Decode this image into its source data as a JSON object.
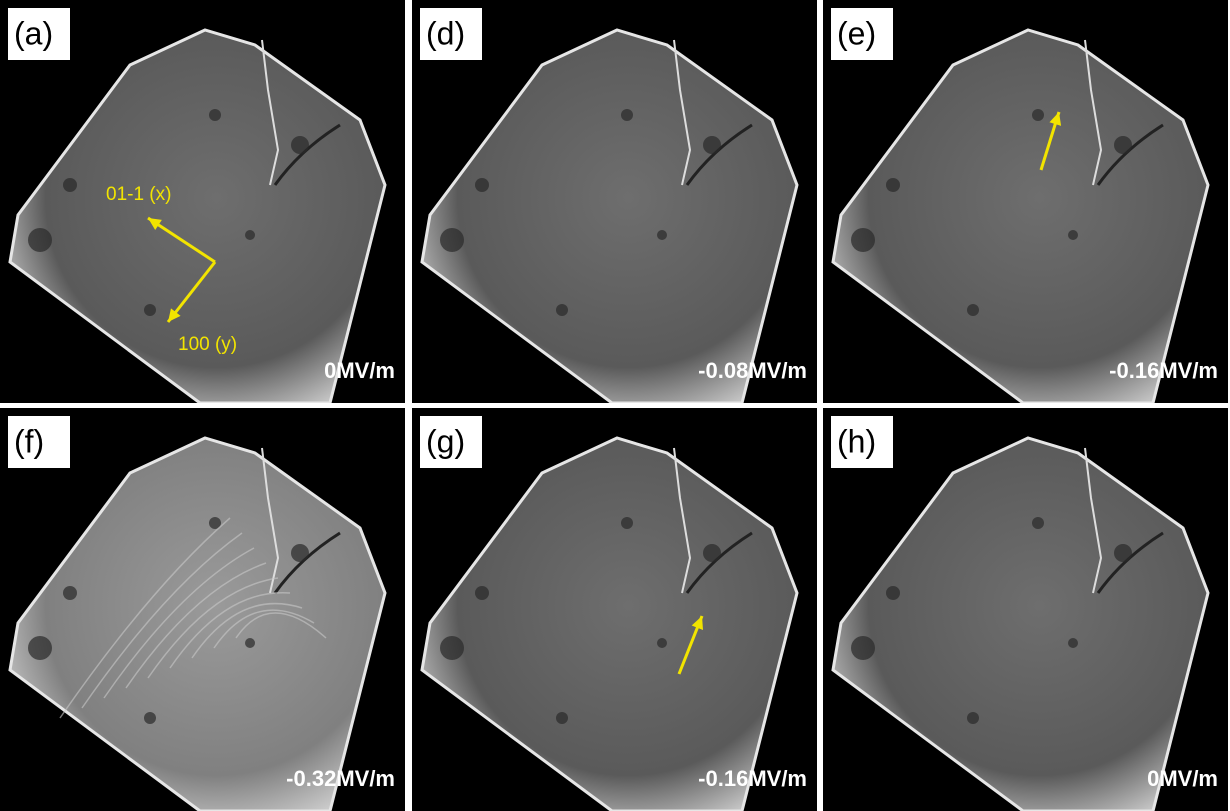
{
  "panels": [
    {
      "label": "(a)",
      "field": "0MV/m",
      "axes": [
        "01-1 (x)",
        "100 (y)"
      ]
    },
    {
      "label": "(d)",
      "field": "-0.08MV/m"
    },
    {
      "label": "(e)",
      "field": "-0.16MV/m"
    },
    {
      "label": "(f)",
      "field": "-0.32MV/m"
    },
    {
      "label": "(g)",
      "field": "-0.16MV/m"
    },
    {
      "label": "(h)",
      "field": "0MV/m"
    }
  ]
}
